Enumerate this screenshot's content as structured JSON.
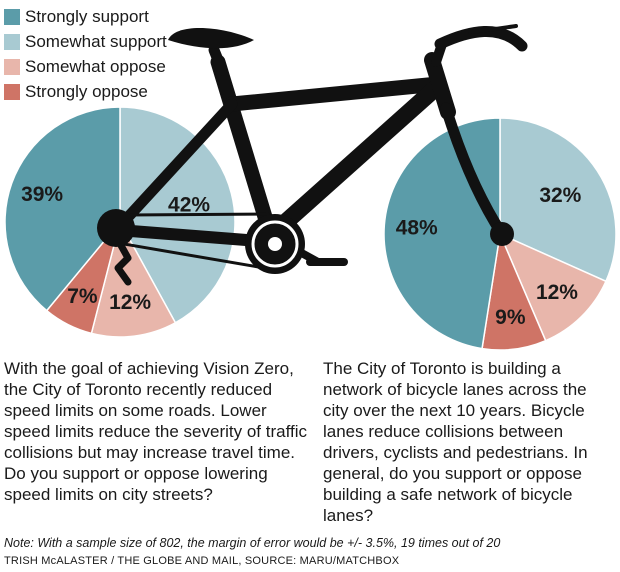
{
  "legend": [
    {
      "label": "Strongly support",
      "color": "#5b9ca9"
    },
    {
      "label": "Somewhat support",
      "color": "#a8cad2"
    },
    {
      "label": "Somewhat oppose",
      "color": "#e8b6ab"
    },
    {
      "label": "Strongly oppose",
      "color": "#cf7466"
    }
  ],
  "chart_data": [
    {
      "type": "pie",
      "categories": [
        "Strongly support",
        "Somewhat support",
        "Somewhat oppose",
        "Strongly oppose"
      ],
      "values": [
        39,
        42,
        12,
        7
      ],
      "labels": [
        "39%",
        "42%",
        "12%",
        "7%"
      ]
    },
    {
      "type": "pie",
      "categories": [
        "Strongly support",
        "Somewhat support",
        "Somewhat oppose",
        "Strongly oppose"
      ],
      "values": [
        48,
        32,
        12,
        9
      ],
      "labels": [
        "48%",
        "32%",
        "12%",
        "9%"
      ]
    }
  ],
  "questions": {
    "left": "With the goal of achieving Vision Zero, the City of Toronto recently reduced speed limits on some roads. Lower speed limits reduce the severity of traffic collisions but may increase travel time. Do you support or oppose lowering speed limits on city streets?",
    "right": "The City of Toronto is building a network of bicycle lanes across the city over the next 10 years. Bicycle lanes reduce collisions between drivers, cyclists and pedestrians. In general, do you support or oppose building a safe network of bicycle lanes?"
  },
  "note": "Note: With a sample size of 802, the margin of error would be +/- 3.5%, 19 times out of 20",
  "credit": "TRISH McALASTER / THE GLOBE AND MAIL, SOURCE: MARU/MATCHBOX"
}
